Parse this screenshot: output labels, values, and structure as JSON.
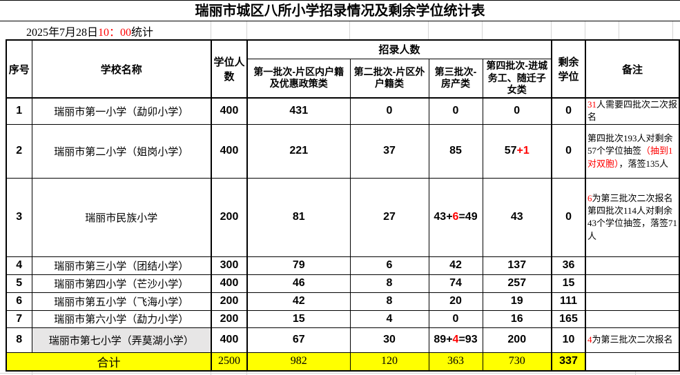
{
  "title": "瑞丽市城区八所小学招录情况及剩余学位统计表",
  "date_line": {
    "prefix": "2025年7月28日",
    "time": "10：00",
    "suffix": "统计"
  },
  "colors": {
    "red": "#ff0000",
    "total_row_yellow": "#ffff00",
    "highlight_cell_gray": "#e7e6e6",
    "border_black": "#000000"
  },
  "table": {
    "headers": {
      "no": "序号",
      "school": "学校名称",
      "quota": "学位人数",
      "enroll_group": "招录人数",
      "batch1": "第一批次-片区内户籍及优惠政策类",
      "batch2": "第二批次-片区外户籍类",
      "batch3": "第三批次-房产类",
      "batch4": "第四批次-进城务工、随迁子女类",
      "remaining": "剩余学位",
      "remark": "备注"
    },
    "rows": [
      {
        "no": "1",
        "school": "瑞丽市第一小学（勐卯小学）",
        "quota": "400",
        "b1": "431",
        "b2": "0",
        "b3": [
          {
            "t": "0"
          }
        ],
        "b4": [
          {
            "t": "0"
          }
        ],
        "remain": "0",
        "remark": [
          {
            "t": "31",
            "r": true
          },
          {
            "t": "人需要四批次二次报名"
          }
        ]
      },
      {
        "no": "2",
        "school": "瑞丽市第二小学（姐岗小学）",
        "quota": "400",
        "b1": "221",
        "b2": "37",
        "b3": [
          {
            "t": "85"
          }
        ],
        "b4": [
          {
            "t": "57"
          },
          {
            "t": "+1",
            "r": true
          }
        ],
        "remain": "0",
        "remark": [
          {
            "t": "第四批次193人对剩余57个学位抽签"
          },
          {
            "t": "（抽到1对双胞）",
            "r": true
          },
          {
            "t": "，落签135人"
          }
        ]
      },
      {
        "no": "3",
        "school": "瑞丽市民族小学",
        "quota": "200",
        "b1": "81",
        "b2": "27",
        "b3": [
          {
            "t": "43+"
          },
          {
            "t": "6",
            "r": true
          },
          {
            "t": "=49"
          }
        ],
        "b4": [
          {
            "t": "43"
          }
        ],
        "remain": "0",
        "remark": [
          {
            "t": "6",
            "r": true
          },
          {
            "t": "为第三批次二次报名"
          },
          {
            "t": "第四批次114人对剩余43个学位抽签，落签71人",
            "nl": true
          }
        ]
      },
      {
        "no": "4",
        "school": "瑞丽市第三小学（团结小学）",
        "quota": "300",
        "b1": "79",
        "b2": "6",
        "b3": [
          {
            "t": "42"
          }
        ],
        "b4": [
          {
            "t": "137"
          }
        ],
        "remain": "36",
        "remark": []
      },
      {
        "no": "5",
        "school": "瑞丽市第四小学（芒沙小学）",
        "quota": "400",
        "b1": "46",
        "b2": "8",
        "b3": [
          {
            "t": "74"
          }
        ],
        "b4": [
          {
            "t": "257"
          }
        ],
        "remain": "15",
        "remark": []
      },
      {
        "no": "6",
        "school": "瑞丽市第五小学（飞海小学）",
        "quota": "200",
        "b1": "42",
        "b2": "8",
        "b3": [
          {
            "t": "20"
          }
        ],
        "b4": [
          {
            "t": "19"
          }
        ],
        "remain": "111",
        "remark": []
      },
      {
        "no": "7",
        "school": "瑞丽市第六小学（勐力小学）",
        "quota": "200",
        "b1": "15",
        "b2": "4",
        "b3": [
          {
            "t": "0"
          }
        ],
        "b4": [
          {
            "t": "16"
          }
        ],
        "remain": "165",
        "remark": []
      },
      {
        "no": "8",
        "school": "瑞丽市第七小学（弄莫湖小学）",
        "quota": "400",
        "b1": "67",
        "b2": "30",
        "b3": [
          {
            "t": "89+"
          },
          {
            "t": "4",
            "r": true
          },
          {
            "t": "=93"
          }
        ],
        "b4": [
          {
            "t": "200"
          }
        ],
        "remain": "10",
        "remark": [
          {
            "t": "4",
            "r": true
          },
          {
            "t": "为第三批次二次报名"
          }
        ],
        "school_highlighted": true
      }
    ],
    "total": {
      "label": "合计",
      "quota": "2500",
      "b1": "982",
      "b2": "120",
      "b3": "363",
      "b4": "730",
      "remain": "337",
      "remark": ""
    }
  }
}
